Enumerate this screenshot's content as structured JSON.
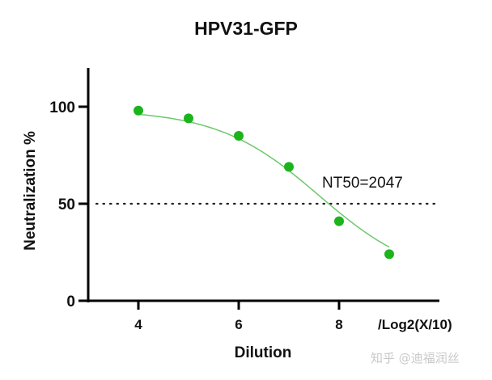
{
  "chart_data": {
    "type": "line",
    "title": "HPV31-GFP",
    "xlabel": "Dilution",
    "x_unit_label": "/Log2(X/10)",
    "ylabel": "Neutralization %",
    "x": [
      4,
      5,
      6,
      7,
      8,
      9
    ],
    "series": [
      {
        "name": "HPV31-GFP",
        "values": [
          98,
          94,
          85,
          69,
          41,
          24
        ],
        "color": "#1db31d",
        "fit": "sigmoidal curve"
      }
    ],
    "xticks": [
      4,
      6,
      8
    ],
    "yticks": [
      0,
      50,
      100
    ],
    "xlim": [
      3,
      10
    ],
    "ylim": [
      0,
      120
    ],
    "reference_line": {
      "y": 50,
      "style": "dotted"
    },
    "annotations": [
      "NT50=2047"
    ],
    "grid": false,
    "legend": "none"
  },
  "watermark": "知乎 @迪福润丝"
}
